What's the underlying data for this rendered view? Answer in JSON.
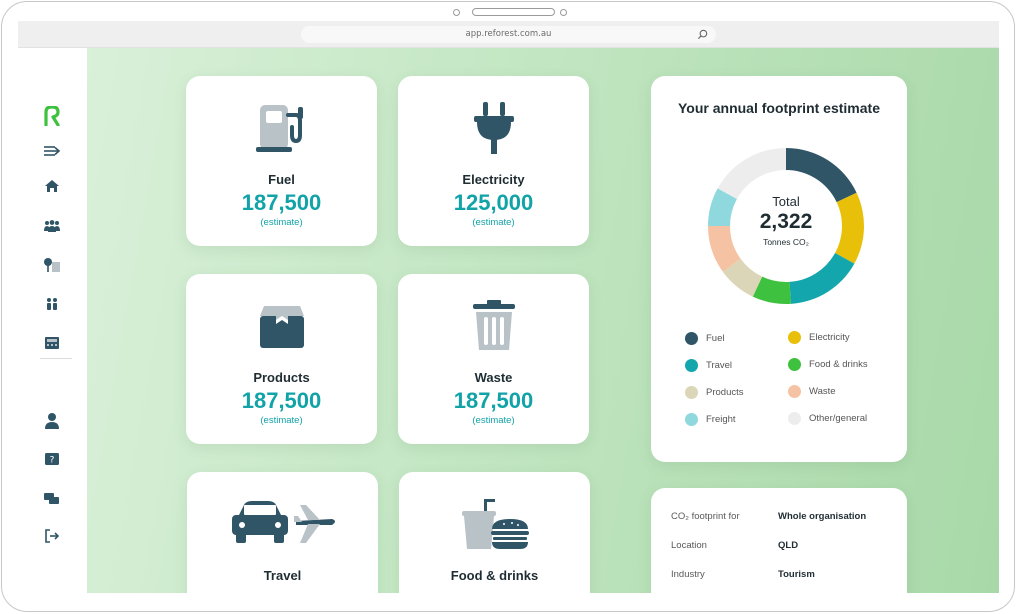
{
  "browser": {
    "url": "app.reforest.com.au"
  },
  "sidebar": {
    "logo_letter": "R",
    "icons": [
      "expand-icon",
      "home-icon",
      "team-icon",
      "location-icon",
      "people-icon",
      "calculator-icon",
      "user-icon",
      "help-icon",
      "chat-icon",
      "logout-icon"
    ]
  },
  "categories": [
    {
      "label": "Fuel",
      "value": "187,500",
      "sub": "(estimate)",
      "icon": "fuel-pump-icon"
    },
    {
      "label": "Electricity",
      "value": "125,000",
      "sub": "(estimate)",
      "icon": "plug-icon"
    },
    {
      "label": "Products",
      "value": "187,500",
      "sub": "(estimate)",
      "icon": "box-icon"
    },
    {
      "label": "Waste",
      "value": "187,500",
      "sub": "(estimate)",
      "icon": "bin-icon"
    },
    {
      "label": "Travel",
      "value": "",
      "sub": "",
      "icon": "car-plane-icon"
    },
    {
      "label": "Food & drinks",
      "value": "",
      "sub": "",
      "icon": "food-drink-icon"
    }
  ],
  "footprint": {
    "title": "Your annual footprint estimate",
    "total_label": "Total",
    "total_value": "2,322",
    "total_unit": "Tonnes CO₂",
    "legend": [
      {
        "name": "Fuel",
        "color": "#2f5566"
      },
      {
        "name": "Electricity",
        "color": "#e8c00a"
      },
      {
        "name": "Travel",
        "color": "#13a6ad"
      },
      {
        "name": "Food & drinks",
        "color": "#3ec13e"
      },
      {
        "name": "Products",
        "color": "#dcd6b8"
      },
      {
        "name": "Waste",
        "color": "#f5c3a3"
      },
      {
        "name": "Freight",
        "color": "#8ed8de"
      },
      {
        "name": "Other/general",
        "color": "#ededed"
      }
    ]
  },
  "chart_data": {
    "type": "pie",
    "categories": [
      "Fuel",
      "Electricity",
      "Travel",
      "Food & drinks",
      "Products",
      "Waste",
      "Freight",
      "Other/general"
    ],
    "values": [
      18,
      15,
      16,
      8,
      8,
      10,
      8,
      17
    ],
    "title": "Your annual footprint estimate"
  },
  "details": {
    "rows": [
      {
        "key": "CO₂ footprint for",
        "value": "Whole organisation"
      },
      {
        "key": "Location",
        "value": "QLD"
      },
      {
        "key": "Industry",
        "value": "Tourism"
      }
    ]
  }
}
